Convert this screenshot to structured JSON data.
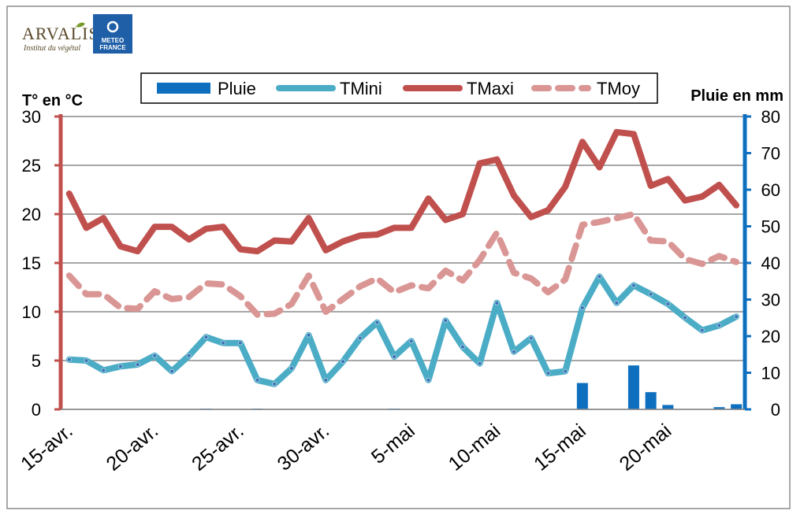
{
  "logos": {
    "arvalis": {
      "name": "ARVALIS",
      "subtitle": "Institut du végétal"
    },
    "meteo": {
      "line1": "METEO",
      "line2": "FRANCE"
    }
  },
  "chart_data": {
    "type": "bar+line",
    "title": "",
    "ylabel_left": "T° en °C",
    "ylabel_right": "Pluie en mm",
    "ylim_left": [
      0,
      30
    ],
    "ylim_right": [
      0,
      80
    ],
    "yticks_left": [
      "0",
      "5",
      "10",
      "15",
      "20",
      "25",
      "30"
    ],
    "yticks_right": [
      "0",
      "10",
      "20",
      "30",
      "40",
      "50",
      "60",
      "70",
      "80"
    ],
    "x_tick_labels": [
      "15-avr.",
      "20-avr.",
      "25-avr.",
      "30-avr.",
      "5-mai",
      "10-mai",
      "15-mai",
      "20-mai"
    ],
    "x_tick_indices": [
      0,
      5,
      10,
      15,
      20,
      25,
      30,
      35
    ],
    "grid": "horizontal",
    "legend_position": "top",
    "colors": {
      "Pluie": "#0e6fbf",
      "TMini": "#4bacc6",
      "TMaxi": "#c0504d",
      "TMoy": "#d99694",
      "left_axis": "#c0504d",
      "right_axis": "#0e6fbf"
    },
    "x": [
      "15-avr.",
      "16-avr.",
      "17-avr.",
      "18-avr.",
      "19-avr.",
      "20-avr.",
      "21-avr.",
      "22-avr.",
      "23-avr.",
      "24-avr.",
      "25-avr.",
      "26-avr.",
      "27-avr.",
      "28-avr.",
      "29-avr.",
      "30-avr.",
      "1-mai",
      "2-mai",
      "3-mai",
      "4-mai",
      "5-mai",
      "6-mai",
      "7-mai",
      "8-mai",
      "9-mai",
      "10-mai",
      "11-mai",
      "12-mai",
      "13-mai",
      "14-mai",
      "15-mai",
      "16-mai",
      "17-mai",
      "18-mai",
      "19-mai",
      "20-mai",
      "21-mai",
      "22-mai",
      "23-mai",
      "24-mai"
    ],
    "series": [
      {
        "name": "Pluie",
        "type": "bar",
        "axis": "right",
        "values": [
          0,
          0,
          0,
          0,
          0,
          0,
          0,
          0,
          0.2,
          0,
          0,
          0.2,
          0,
          0,
          0,
          0,
          0,
          0,
          0,
          0.2,
          0,
          0,
          0,
          0,
          0.1,
          0,
          0,
          0.1,
          0,
          0,
          7.2,
          0,
          0,
          12,
          4.7,
          1.2,
          0,
          0,
          0.6,
          1.4
        ]
      },
      {
        "name": "TMini",
        "type": "line",
        "axis": "left",
        "values": [
          5.1,
          5,
          4,
          4.4,
          4.6,
          5.5,
          3.9,
          5.5,
          7.4,
          6.8,
          6.8,
          3,
          2.6,
          4.2,
          7.6,
          3,
          4.9,
          7.3,
          8.9,
          5.4,
          7,
          3,
          9.1,
          6.4,
          4.7,
          10.9,
          5.9,
          7.3,
          3.7,
          3.9,
          10.4,
          13.6,
          10.9,
          12.7,
          11.8,
          10.8,
          9.4,
          8.1,
          8.6,
          9.5
        ]
      },
      {
        "name": "TMaxi",
        "type": "line",
        "axis": "left",
        "values": [
          22.1,
          18.6,
          19.6,
          16.7,
          16.2,
          18.7,
          18.7,
          17.4,
          18.5,
          18.7,
          16.4,
          16.2,
          17.3,
          17.2,
          19.6,
          16.3,
          17.2,
          17.8,
          17.9,
          18.6,
          18.6,
          21.6,
          19.4,
          20,
          25.2,
          25.6,
          21.9,
          19.7,
          20.4,
          22.8,
          27.4,
          24.8,
          28.4,
          28.2,
          22.9,
          23.6,
          21.4,
          21.8,
          23,
          20.9
        ]
      },
      {
        "name": "TMoy",
        "type": "line",
        "dashed": true,
        "axis": "left",
        "values": [
          13.7,
          11.8,
          11.8,
          10.4,
          10.3,
          12.1,
          11.3,
          11.5,
          12.9,
          12.8,
          11.6,
          9.7,
          9.8,
          10.8,
          13.7,
          10,
          11.3,
          12.6,
          13.4,
          12,
          12.7,
          12.4,
          14.2,
          13.2,
          15.3,
          18.1,
          14,
          13.4,
          12,
          13.3,
          18.9,
          19.2,
          19.6,
          20,
          17.3,
          17.2,
          15.4,
          14.9,
          15.7,
          15.1
        ]
      }
    ]
  }
}
